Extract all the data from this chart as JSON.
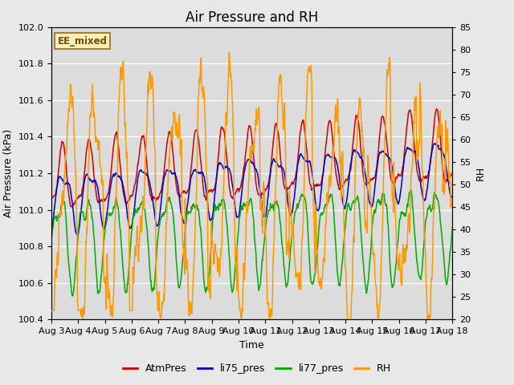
{
  "title": "Air Pressure and RH",
  "xlabel": "Time",
  "ylabel_left": "Air Pressure (kPa)",
  "ylabel_right": "RH",
  "ylim_left": [
    100.4,
    102.0
  ],
  "ylim_right": [
    20,
    85
  ],
  "annotation": "EE_mixed",
  "annotation_color": "#7B4B00",
  "annotation_bg": "#F5EFBE",
  "annotation_edge": "#9B6B10",
  "x_start": 3,
  "x_end": 18,
  "x_ticks": [
    3,
    4,
    5,
    6,
    7,
    8,
    9,
    10,
    11,
    12,
    13,
    14,
    15,
    16,
    17,
    18
  ],
  "x_tick_labels": [
    "Aug 3",
    "Aug 4",
    "Aug 5",
    "Aug 6",
    "Aug 7",
    "Aug 8",
    "Aug 9",
    "Aug 10",
    "Aug 11",
    "Aug 12",
    "Aug 13",
    "Aug 14",
    "Aug 15",
    "Aug 16",
    "Aug 17",
    "Aug 18"
  ],
  "color_AtmPres": "#CC0000",
  "color_li75": "#0000BB",
  "color_li77": "#00AA00",
  "color_RH": "#FF9900",
  "bg_color": "#E8E8E8",
  "plot_bg": "#DCDCDC",
  "grid_color": "#FFFFFF",
  "title_fontsize": 12,
  "label_fontsize": 9,
  "tick_fontsize": 8,
  "yticks_left": [
    100.4,
    100.6,
    100.8,
    101.0,
    101.2,
    101.4,
    101.6,
    101.8,
    102.0
  ],
  "yticks_right": [
    20,
    25,
    30,
    35,
    40,
    45,
    50,
    55,
    60,
    65,
    70,
    75,
    80,
    85
  ]
}
